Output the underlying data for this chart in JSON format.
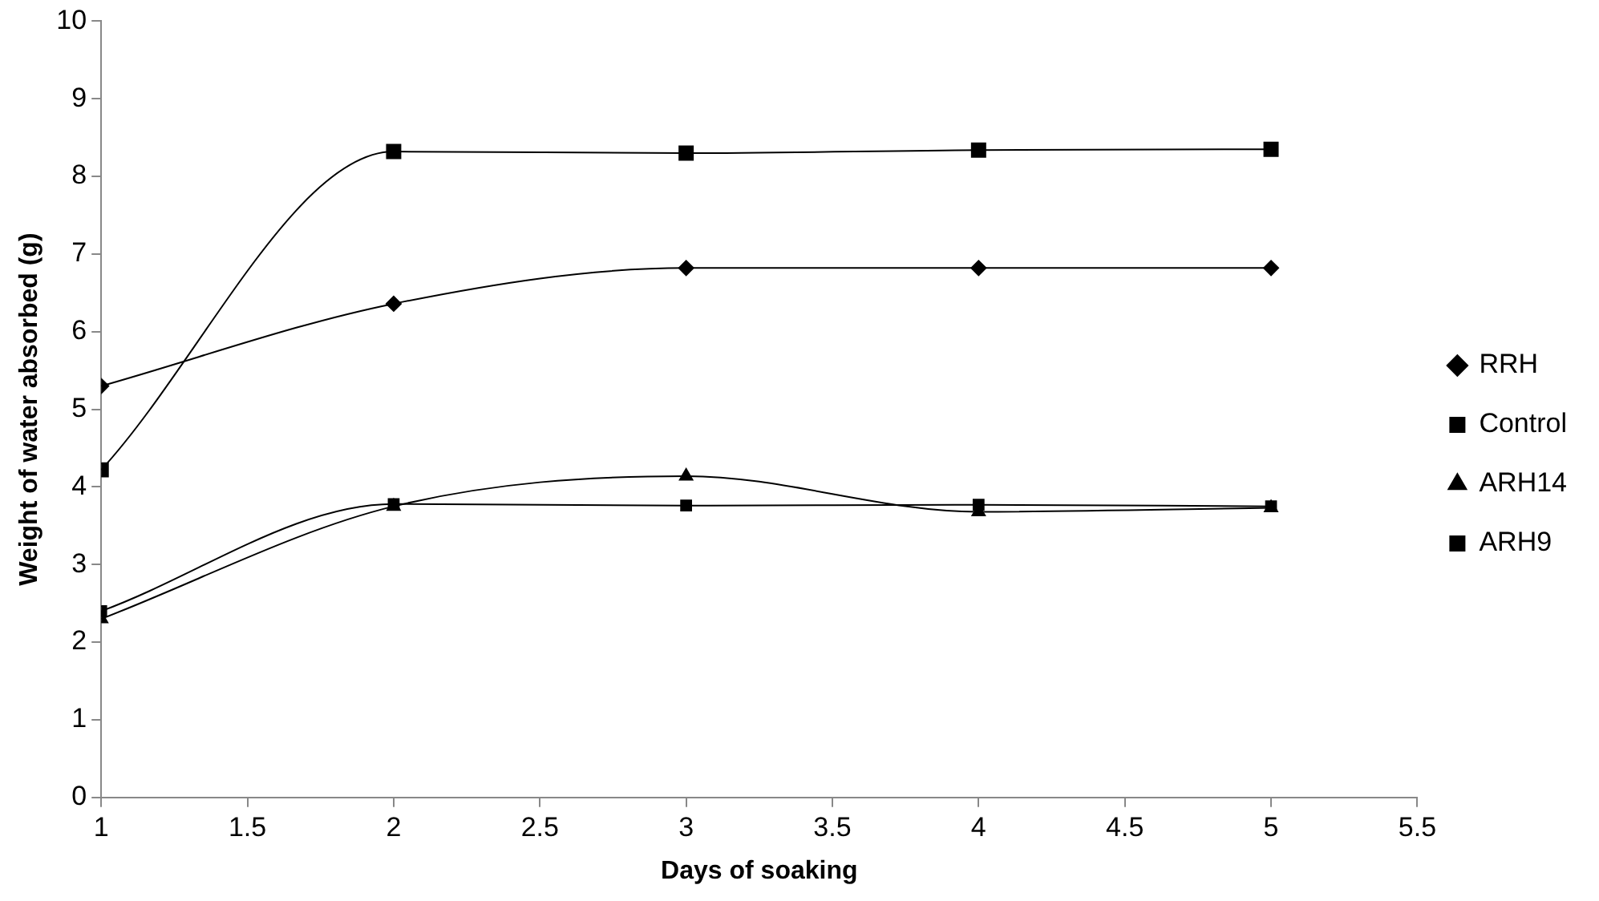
{
  "chart_data": {
    "type": "line",
    "xlabel": "Days of soaking",
    "ylabel": "Weight of water absorbed (g)",
    "x": [
      1,
      2,
      3,
      4,
      5
    ],
    "series": [
      {
        "name": "RRH",
        "color": "#000000",
        "marker": "diamond",
        "values": [
          5.3,
          6.36,
          6.82,
          6.82,
          6.82
        ]
      },
      {
        "name": "Control",
        "color": "#000000",
        "marker": "square",
        "values": [
          4.22,
          8.32,
          8.3,
          8.34,
          8.35
        ]
      },
      {
        "name": "ARH14",
        "color": "#000000",
        "marker": "triangle",
        "values": [
          2.3,
          3.75,
          4.14,
          3.68,
          3.73
        ]
      },
      {
        "name": "ARH9",
        "color": "#000000",
        "marker": "square",
        "values": [
          2.4,
          3.78,
          3.76,
          3.77,
          3.75
        ]
      }
    ],
    "xlim": [
      1,
      5.5
    ],
    "xticks": [
      1,
      1.5,
      2,
      2.5,
      3,
      3.5,
      4,
      4.5,
      5,
      5.5
    ],
    "ylim": [
      0,
      10
    ],
    "yticks": [
      0,
      1,
      2,
      3,
      4,
      5,
      6,
      7,
      8,
      9,
      10
    ],
    "grid": false,
    "legend": "right",
    "line_style": "solid"
  }
}
